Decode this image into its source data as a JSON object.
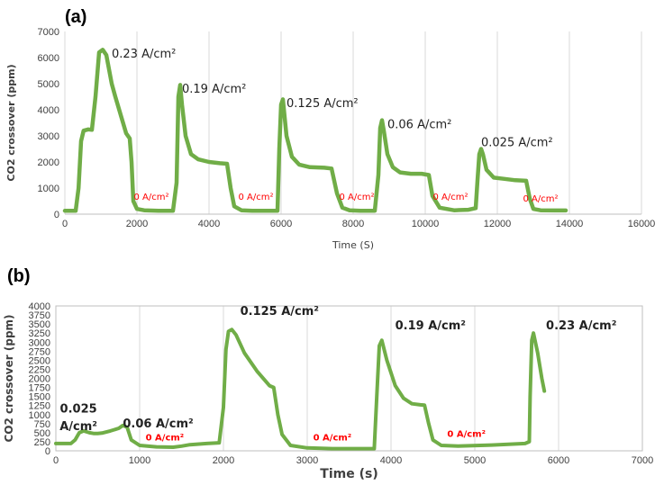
{
  "colors": {
    "series": "#70ad47",
    "zero_label": "#ff0000",
    "grid": "#d9d9d9"
  },
  "chart_data": [
    {
      "panel": "(a)",
      "type": "line",
      "xlabel": "Time (S)",
      "ylabel": "CO2 crossover (ppm)",
      "xlim": [
        0,
        16000
      ],
      "ylim": [
        0,
        7000
      ],
      "xticks": [
        "0",
        "2000",
        "4000",
        "6000",
        "8000",
        "10000",
        "12000",
        "14000",
        "16000"
      ],
      "yticks": [
        "0",
        "1000",
        "2000",
        "3000",
        "4000",
        "5000",
        "6000",
        "7000"
      ],
      "grid": "vertical",
      "series": [
        {
          "x": [
            0,
            300,
            380,
            450,
            520,
            650,
            750,
            850,
            950,
            1050,
            1150,
            1300,
            1400,
            1550,
            1700,
            1800,
            1850,
            1900,
            2000,
            2200,
            2600,
            3000,
            3100,
            3150,
            3200,
            3250,
            3350,
            3500,
            3700,
            4000,
            4300,
            4500,
            4600,
            4700,
            4900,
            5200,
            5600,
            5900,
            5950,
            6000,
            6050,
            6150,
            6300,
            6500,
            6800,
            7200,
            7400,
            7550,
            7700,
            7900,
            8200,
            8600,
            8700,
            8750,
            8800,
            8850,
            8950,
            9100,
            9300,
            9600,
            9900,
            10100,
            10200,
            10400,
            10800,
            11200,
            11400,
            11450,
            11500,
            11550,
            11600,
            11700,
            11900,
            12200,
            12500,
            12800,
            12900,
            13000,
            13200,
            13600,
            13900
          ],
          "y": [
            130,
            130,
            1000,
            2800,
            3200,
            3250,
            3230,
            4500,
            6200,
            6300,
            6100,
            5000,
            4500,
            3800,
            3100,
            2900,
            2000,
            500,
            200,
            150,
            130,
            130,
            1200,
            4500,
            4950,
            4200,
            3000,
            2300,
            2100,
            2000,
            1950,
            1930,
            1000,
            300,
            150,
            130,
            130,
            130,
            2500,
            4200,
            4400,
            3000,
            2200,
            1900,
            1800,
            1780,
            1750,
            800,
            250,
            150,
            130,
            130,
            1500,
            3300,
            3600,
            3200,
            2300,
            1800,
            1600,
            1550,
            1550,
            1500,
            700,
            250,
            150,
            170,
            230,
            1300,
            2300,
            2500,
            2300,
            1700,
            1400,
            1350,
            1300,
            1280,
            600,
            200,
            150,
            140,
            140
          ]
        }
      ],
      "annotations": [
        {
          "text": "0.23 A/cm²",
          "x": 1300,
          "y": 6000
        },
        {
          "text": "0.19 A/cm²",
          "x": 3250,
          "y": 4650
        },
        {
          "text": "0.125 A/cm²",
          "x": 6150,
          "y": 4100
        },
        {
          "text": "0.06 A/cm²",
          "x": 8950,
          "y": 3300
        },
        {
          "text": "0.025 A/cm²",
          "x": 11550,
          "y": 2600
        }
      ],
      "zero_labels": [
        {
          "text": "0 A/cm²",
          "x": 2400,
          "y": 550
        },
        {
          "text": "0 A/cm²",
          "x": 5300,
          "y": 550
        },
        {
          "text": "0 A/cm²",
          "x": 8100,
          "y": 550
        },
        {
          "text": "0 A/cm²",
          "x": 10700,
          "y": 550
        },
        {
          "text": "0 A/cm²",
          "x": 13200,
          "y": 480
        }
      ]
    },
    {
      "panel": "(b)",
      "type": "line",
      "xlabel": "Time (s)",
      "ylabel": "CO2 crossover (ppm)",
      "xlim": [
        0,
        7000
      ],
      "ylim": [
        0,
        4000
      ],
      "xticks": [
        "0",
        "1000",
        "2000",
        "3000",
        "4000",
        "5000",
        "6000",
        "7000"
      ],
      "yticks": [
        "0",
        "250",
        "500",
        "750",
        "1000",
        "1250",
        "1500",
        "1750",
        "2000",
        "2250",
        "2500",
        "2750",
        "3000",
        "3250",
        "3500",
        "3750",
        "4000"
      ],
      "grid": "vertical",
      "series": [
        {
          "x": [
            0,
            180,
            230,
            280,
            330,
            400,
            450,
            500,
            550,
            650,
            750,
            800,
            850,
            900,
            1000,
            1200,
            1400,
            1500,
            1600,
            1800,
            1950,
            2000,
            2030,
            2060,
            2100,
            2150,
            2250,
            2400,
            2550,
            2600,
            2650,
            2700,
            2800,
            3000,
            3300,
            3600,
            3800,
            3830,
            3860,
            3890,
            3950,
            4050,
            4150,
            4250,
            4350,
            4400,
            4450,
            4500,
            4600,
            4800,
            5200,
            5600,
            5650,
            5660,
            5680,
            5700,
            5750,
            5800,
            5830
          ],
          "y": [
            200,
            200,
            300,
            500,
            550,
            500,
            480,
            480,
            490,
            550,
            620,
            700,
            650,
            300,
            150,
            110,
            100,
            130,
            170,
            200,
            220,
            1200,
            2800,
            3300,
            3350,
            3200,
            2700,
            2200,
            1800,
            1750,
            1000,
            450,
            150,
            80,
            60,
            60,
            60,
            1500,
            2900,
            3050,
            2500,
            1800,
            1450,
            1300,
            1270,
            1260,
            750,
            300,
            150,
            130,
            160,
            200,
            250,
            1500,
            3050,
            3250,
            2700,
            2000,
            1650
          ]
        }
      ],
      "annotations": [
        {
          "text": "0.025",
          "x": 270,
          "y": 1050
        },
        {
          "text": "A/cm²",
          "x": 270,
          "y": 570
        },
        {
          "text": "0.06 A/cm²",
          "x": 800,
          "y": 650
        },
        {
          "text": "0.125 A/cm²",
          "x": 2200,
          "y": 3750
        },
        {
          "text": "0.19 A/cm²",
          "x": 4050,
          "y": 3350
        },
        {
          "text": "0.23 A/cm²",
          "x": 5850,
          "y": 3350
        }
      ],
      "zero_labels": [
        {
          "text": "0 A/cm²",
          "x": 1300,
          "y": 280
        },
        {
          "text": "0 A/cm²",
          "x": 3300,
          "y": 280
        },
        {
          "text": "0 A/cm²",
          "x": 4900,
          "y": 380
        }
      ]
    }
  ]
}
